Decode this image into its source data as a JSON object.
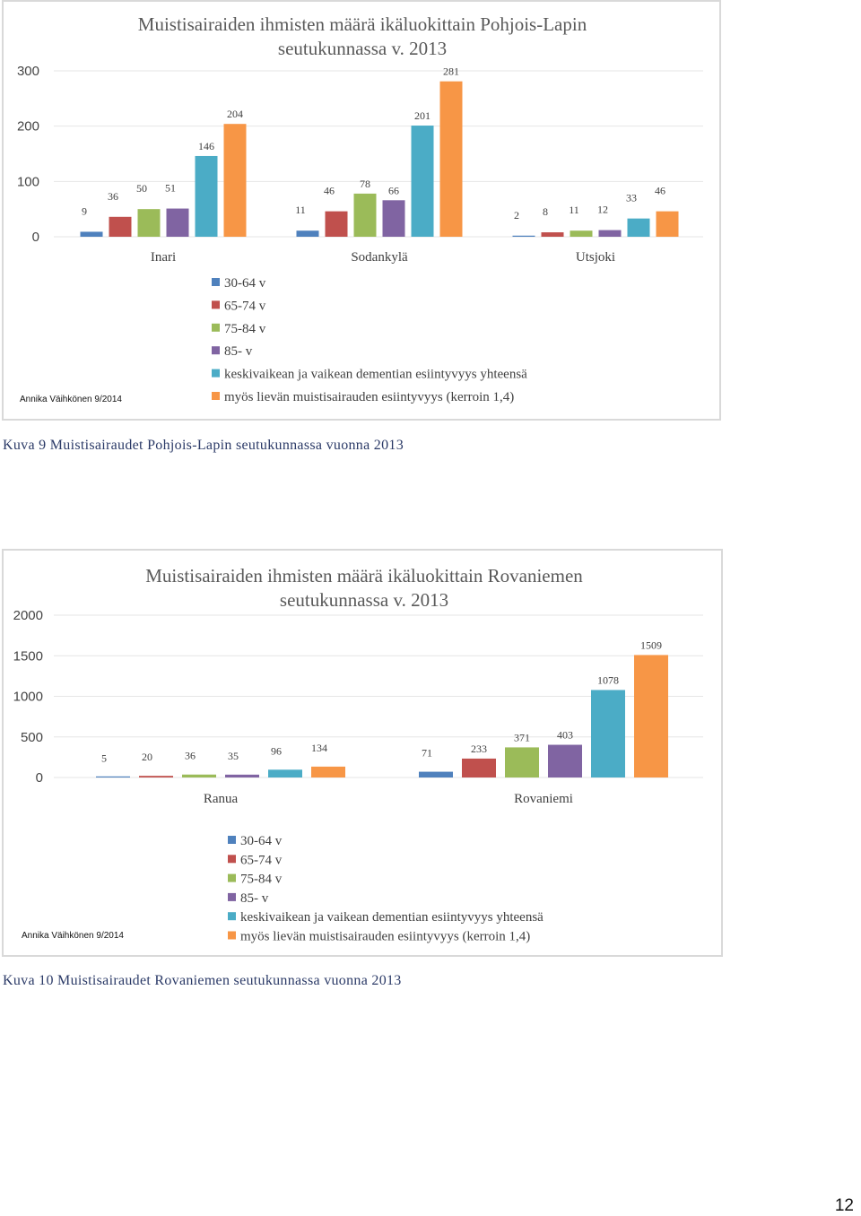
{
  "colors": {
    "series": [
      "#4f81bd",
      "#c0504d",
      "#9bbb59",
      "#8064a2",
      "#4bacc6",
      "#f79646"
    ],
    "grid": "#e6e6e6",
    "caption": "#2b3a67"
  },
  "series_names": [
    "30-64 v",
    "65-74 v",
    "75-84 v",
    "85- v",
    "keskivaikean ja vaikean dementian esiintyvyys yhteensä",
    "myös lievän muistisairauden esiintyvyys (kerroin 1,4)"
  ],
  "chart_data": [
    {
      "type": "bar",
      "title": "Muistisairaiden ihmisten määrä ikäluokittain  Pohjois-Lapin seutukunnassa v. 2013",
      "title_lines": [
        "Muistisairaiden ihmisten määrä ikäluokittain  Pohjois-Lapin",
        "seutukunnassa v. 2013"
      ],
      "categories": [
        "Inari",
        "Sodankylä",
        "Utsjoki"
      ],
      "series": [
        {
          "name": "30-64 v",
          "values": [
            9,
            11,
            2
          ]
        },
        {
          "name": "65-74 v",
          "values": [
            36,
            46,
            8
          ]
        },
        {
          "name": "75-84 v",
          "values": [
            50,
            78,
            11
          ]
        },
        {
          "name": "85- v",
          "values": [
            51,
            66,
            12
          ]
        },
        {
          "name": "keskivaikean ja vaikean dementian esiintyvyys yhteensä",
          "values": [
            146,
            201,
            33
          ]
        },
        {
          "name": "myös lievän muistisairauden esiintyvyys (kerroin 1,4)",
          "values": [
            204,
            281,
            46
          ]
        }
      ],
      "ylim": [
        0,
        300
      ],
      "yticks": [
        0,
        100,
        200,
        300
      ],
      "grid": true,
      "legend": "bottom",
      "credit": "Annika Väihkönen 9/2014"
    },
    {
      "type": "bar",
      "title": "Muistisairaiden ihmisten määrä ikäluokittain  Rovaniemen seutukunnassa v. 2013",
      "title_lines": [
        "Muistisairaiden ihmisten määrä ikäluokittain  Rovaniemen",
        "seutukunnassa v. 2013"
      ],
      "categories": [
        "Ranua",
        "Rovaniemi"
      ],
      "series": [
        {
          "name": "30-64 v",
          "values": [
            5,
            71
          ]
        },
        {
          "name": "65-74 v",
          "values": [
            20,
            233
          ]
        },
        {
          "name": "75-84 v",
          "values": [
            36,
            371
          ]
        },
        {
          "name": "85- v",
          "values": [
            35,
            403
          ]
        },
        {
          "name": "keskivaikean ja vaikean dementian esiintyvyys yhteensä",
          "values": [
            96,
            1078
          ]
        },
        {
          "name": "myös lievän muistisairauden esiintyvyys (kerroin 1,4)",
          "values": [
            134,
            1509
          ]
        }
      ],
      "ylim": [
        0,
        2000
      ],
      "yticks": [
        0,
        500,
        1000,
        1500,
        2000
      ],
      "grid": true,
      "legend": "bottom",
      "credit": "Annika Väihkönen 9/2014"
    }
  ],
  "captions": {
    "figure9": "Kuva 9 Muistisairaudet Pohjois-Lapin seutukunnassa vuonna 2013",
    "figure10": "Kuva 10 Muistisairaudet Rovaniemen seutukunnassa vuonna 2013"
  },
  "page_number": "12"
}
